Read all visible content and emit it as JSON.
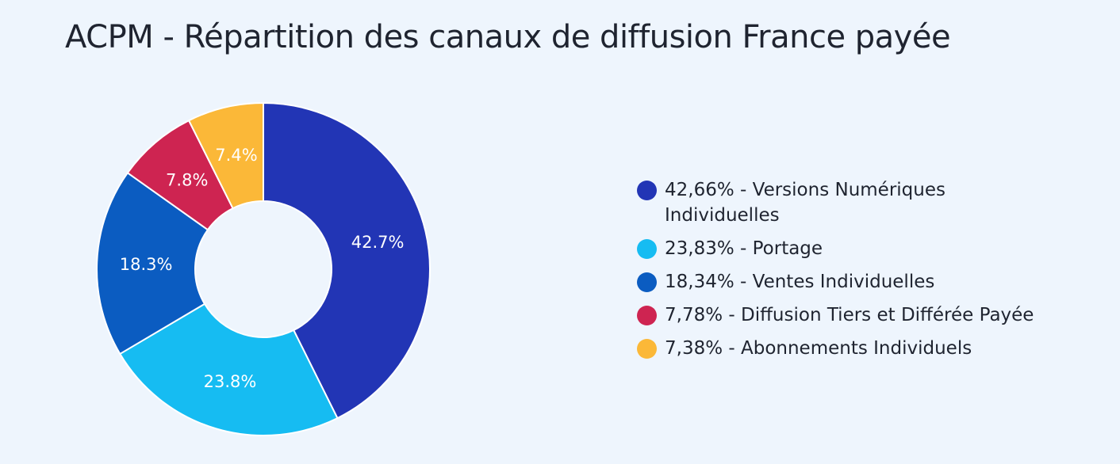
{
  "title": "ACPM - Répartition des canaux de diffusion France payée",
  "chart_data": {
    "type": "pie",
    "donut": true,
    "title": "ACPM - Répartition des canaux de diffusion France payée",
    "legend_position": "right",
    "slices": [
      {
        "value": 42.66,
        "label": "42.7%",
        "legend": "42,66% - Versions Numériques Individuelles",
        "color": "#2235b5"
      },
      {
        "value": 23.83,
        "label": "23.8%",
        "legend": "23,83% - Portage",
        "color": "#16bcf2"
      },
      {
        "value": 18.34,
        "label": "18.3%",
        "legend": "18,34% - Ventes Individuelles",
        "color": "#0b5cc1"
      },
      {
        "value": 7.78,
        "label": "7.8%",
        "legend": "7,78% - Diffusion Tiers et Différée Payée",
        "color": "#ce2451"
      },
      {
        "value": 7.38,
        "label": "7.4%",
        "legend": "7,38% - Abonnements Individuels",
        "color": "#fbb838"
      }
    ]
  }
}
